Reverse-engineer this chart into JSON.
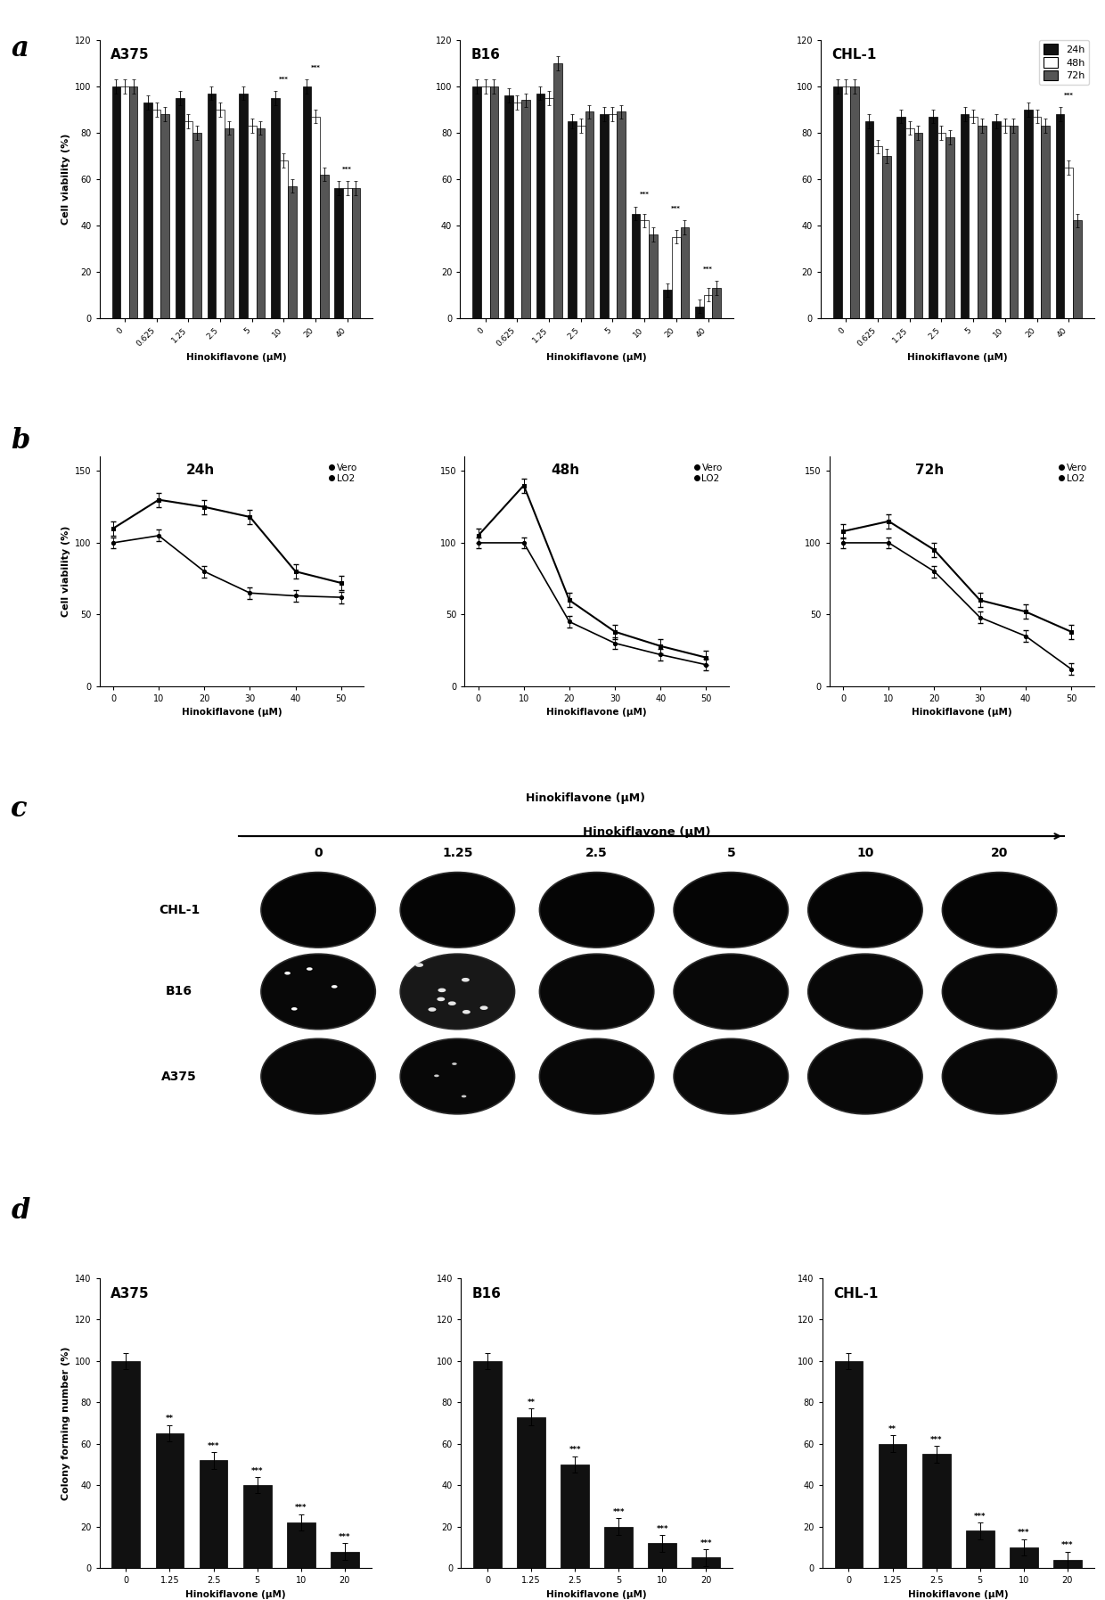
{
  "panel_a": {
    "cell_lines": [
      "A375",
      "B16",
      "CHL-1"
    ],
    "x_labels": [
      "0",
      "0.625",
      "1.25",
      "2.5",
      "5",
      "10",
      "20",
      "40"
    ],
    "ylabel": "Cell viability (%)",
    "xlabel": "Hinokiflavone (μM)",
    "ylim": [
      0,
      120
    ],
    "yticks": [
      0,
      20,
      40,
      60,
      80,
      100,
      120
    ],
    "legend_labels": [
      "24h",
      "48h",
      "72h"
    ],
    "bar_colors": [
      "#111111",
      "#ffffff",
      "#555555"
    ],
    "bar_edgecolor": "#000000",
    "A375_24h": [
      100,
      93,
      95,
      97,
      97,
      95,
      100,
      56
    ],
    "A375_48h": [
      100,
      90,
      85,
      90,
      83,
      68,
      87,
      56
    ],
    "A375_72h": [
      100,
      88,
      80,
      82,
      82,
      57,
      62,
      56
    ],
    "B16_24h": [
      100,
      96,
      97,
      85,
      88,
      45,
      12,
      5
    ],
    "B16_48h": [
      100,
      93,
      95,
      83,
      88,
      42,
      35,
      10
    ],
    "B16_72h": [
      100,
      94,
      110,
      89,
      89,
      36,
      39,
      13
    ],
    "CHL1_24h": [
      100,
      85,
      87,
      87,
      88,
      85,
      90,
      88
    ],
    "CHL1_48h": [
      100,
      74,
      82,
      80,
      87,
      83,
      87,
      65
    ],
    "CHL1_72h": [
      100,
      70,
      80,
      78,
      83,
      83,
      83,
      42
    ]
  },
  "panel_b": {
    "time_labels": [
      "24h",
      "48h",
      "72h"
    ],
    "xlabel": "Hinokiflavone (μM)",
    "ylabel": "Cell viability (%)",
    "x_vals": [
      0,
      10,
      20,
      30,
      40,
      50
    ],
    "yticks_24": [
      0,
      50,
      100,
      150
    ],
    "yticks_48": [
      0,
      50,
      100,
      150
    ],
    "yticks_72": [
      0,
      50,
      100,
      150
    ],
    "ylim": [
      0,
      160
    ],
    "xticks": [
      0,
      10,
      20,
      30,
      40,
      50
    ],
    "Vero_24h": [
      110,
      130,
      125,
      118,
      80,
      72
    ],
    "LO2_24h": [
      100,
      105,
      80,
      65,
      63,
      62
    ],
    "Vero_48h": [
      105,
      140,
      60,
      38,
      28,
      20
    ],
    "LO2_48h": [
      100,
      100,
      45,
      30,
      22,
      15
    ],
    "Vero_72h": [
      108,
      115,
      95,
      60,
      52,
      38
    ],
    "LO2_72h": [
      100,
      100,
      80,
      48,
      35,
      12
    ],
    "legend_labels": [
      "Vero",
      "LO2"
    ]
  },
  "panel_c": {
    "row_labels": [
      "CHL-1",
      "B16",
      "A375"
    ],
    "col_labels": [
      "0",
      "1.25",
      "2.5",
      "5",
      "10",
      "20"
    ],
    "header": "Hinokiflavone (μM)"
  },
  "panel_d": {
    "cell_lines": [
      "A375",
      "B16",
      "CHL-1"
    ],
    "x_labels": [
      "0",
      "1.25",
      "2.5",
      "5",
      "10",
      "20"
    ],
    "ylabel": "Colony forming number (%)",
    "xlabel": "Hinokiflavone (μM)",
    "ylim": [
      0,
      140
    ],
    "yticks": [
      0,
      20,
      40,
      60,
      80,
      100,
      120,
      140
    ],
    "bar_color": "#111111",
    "bar_edgecolor": "#000000",
    "A375_vals": [
      100,
      65,
      52,
      40,
      22,
      8
    ],
    "B16_vals": [
      100,
      73,
      50,
      20,
      12,
      5
    ],
    "CHL1_vals": [
      100,
      60,
      55,
      18,
      10,
      4
    ]
  },
  "bg_color": "#ffffff"
}
